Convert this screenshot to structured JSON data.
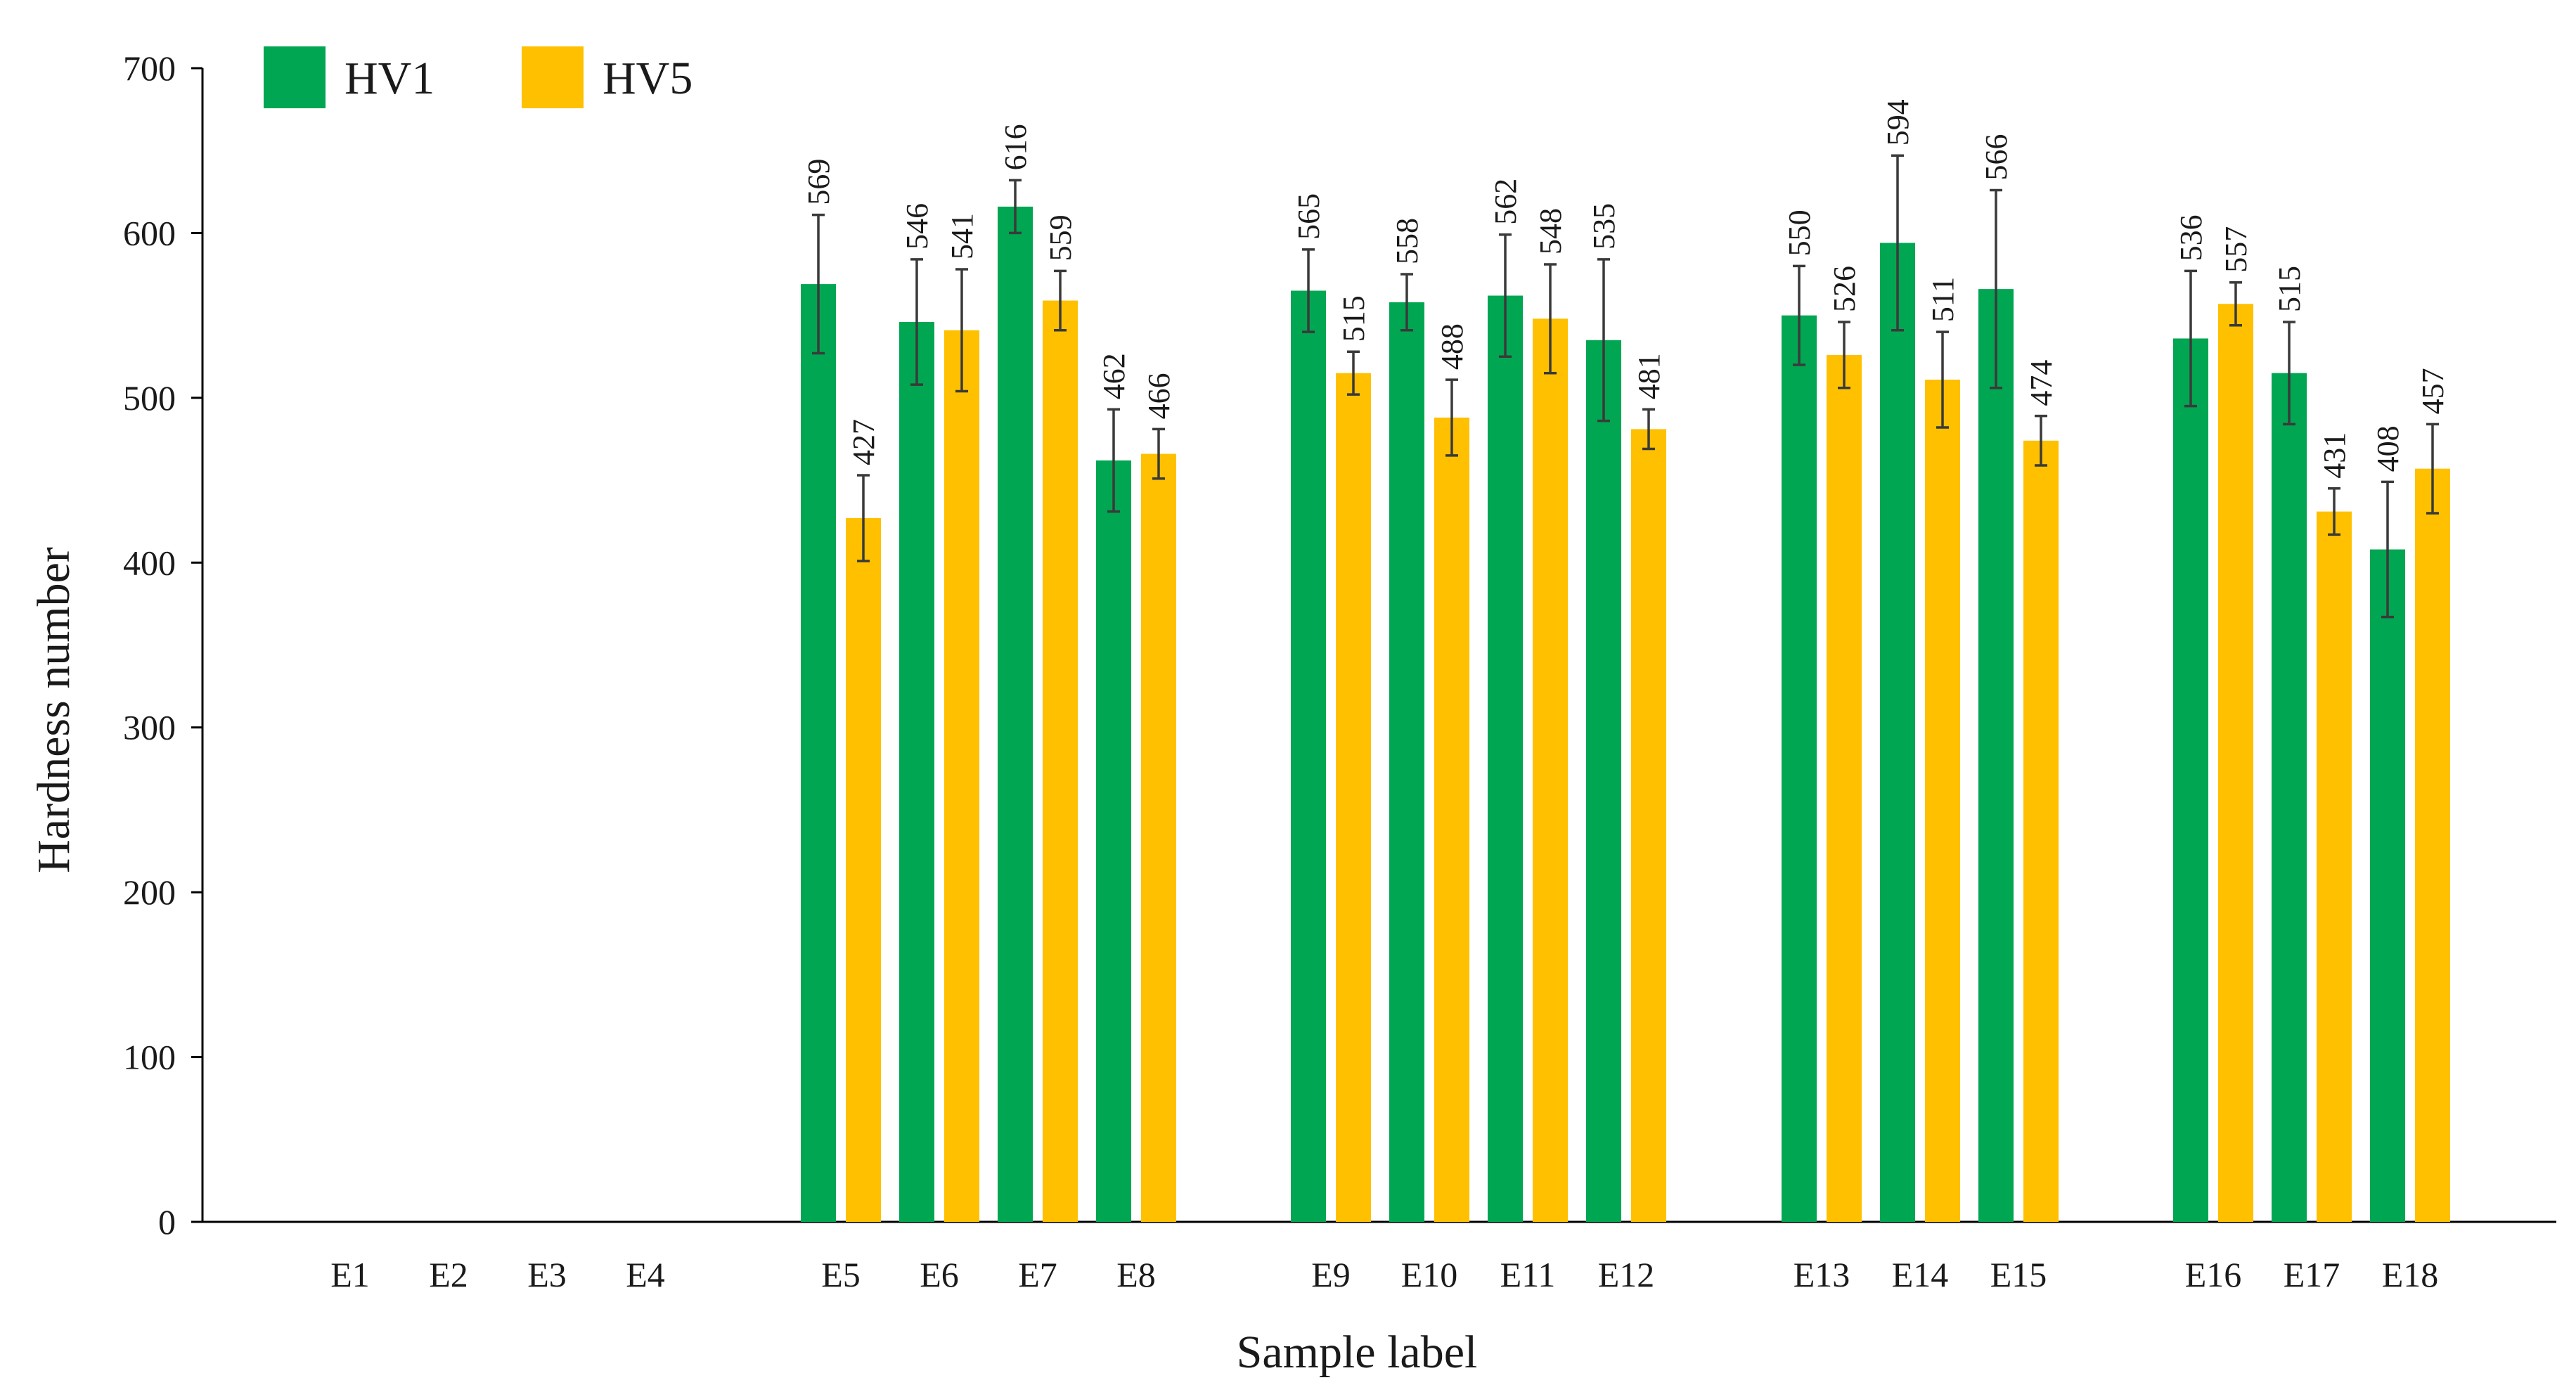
{
  "chart_data": {
    "type": "bar",
    "title": "",
    "xlabel": "Sample label",
    "ylabel": "Hardness number",
    "ylim": [
      0,
      700
    ],
    "yticks": [
      0,
      100,
      200,
      300,
      400,
      500,
      600,
      700
    ],
    "categories": [
      "E1",
      "E2",
      "E3",
      "E4",
      "E5",
      "E6",
      "E7",
      "E8",
      "E9",
      "E10",
      "E11",
      "E12",
      "E13",
      "E14",
      "E15",
      "E16",
      "E17",
      "E18"
    ],
    "series": [
      {
        "name": "HV1",
        "color": "#00A651",
        "values": [
          null,
          null,
          null,
          null,
          569,
          546,
          616,
          462,
          565,
          558,
          562,
          535,
          550,
          594,
          566,
          536,
          515,
          408
        ],
        "errors": [
          null,
          null,
          null,
          null,
          42,
          38,
          16,
          31,
          25,
          17,
          37,
          49,
          30,
          53,
          60,
          41,
          31,
          41
        ]
      },
      {
        "name": "HV5",
        "color": "#FFC000",
        "values": [
          null,
          null,
          null,
          null,
          427,
          541,
          559,
          466,
          515,
          488,
          548,
          481,
          526,
          511,
          474,
          557,
          431,
          457
        ],
        "errors": [
          null,
          null,
          null,
          null,
          26,
          37,
          18,
          15,
          13,
          23,
          33,
          12,
          20,
          29,
          15,
          13,
          14,
          27
        ]
      }
    ],
    "legend_position": "top-left",
    "grid": false
  }
}
